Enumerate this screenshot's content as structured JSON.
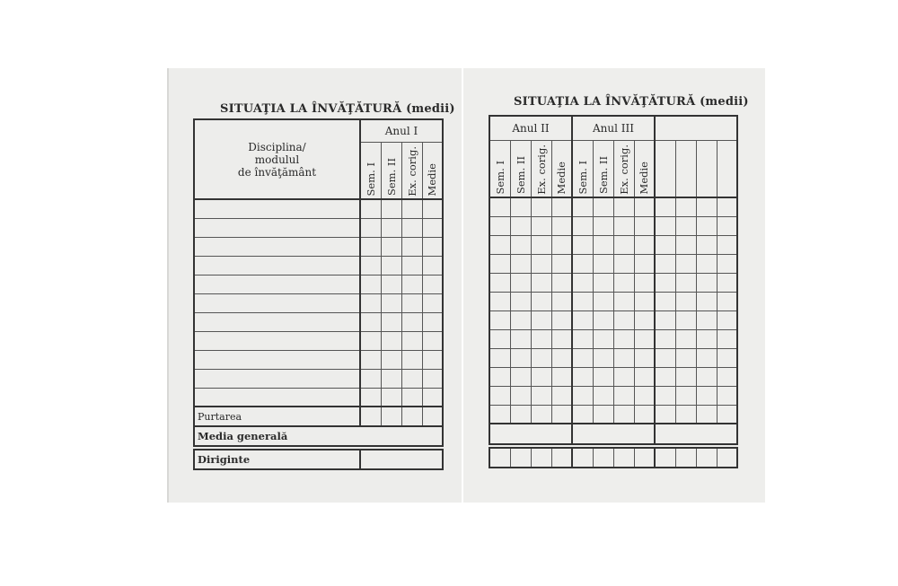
{
  "left_page": {
    "title": "SITUAŢIA LA ÎNVĂŢĂTURĂ (medii)",
    "subject_header": [
      "Disciplina/",
      "modulul",
      "de învăţământ"
    ],
    "year_header": "Anul I",
    "columns": [
      "Sem. I",
      "Sem. II",
      "Ex. corig.",
      "Medie"
    ],
    "conduct_label": "Purtarea",
    "general_average_label": "Media generală",
    "homeroom_teacher_label": "Diriginte"
  },
  "right_page": {
    "title": "SITUAŢIA LA ÎNVĂŢĂTURĂ (medii)",
    "years": [
      {
        "label": "Anul II",
        "columns": [
          "Sem. I",
          "Sem. II",
          "Ex. corig.",
          "Medie"
        ]
      },
      {
        "label": "Anul III",
        "columns": [
          "Sem. I",
          "Sem. II",
          "Ex. corig.",
          "Medie"
        ]
      },
      {
        "label": "",
        "columns": [
          "",
          "",
          "",
          ""
        ]
      }
    ]
  }
}
